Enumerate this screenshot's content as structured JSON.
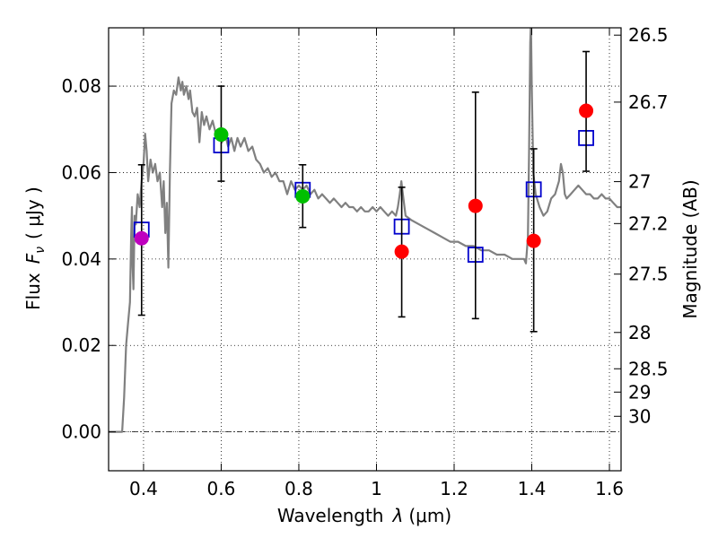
{
  "chart_data": {
    "type": "scatter",
    "xlabel": "Wavelength λ (μm)",
    "ylabel": "Flux F_ν (μJy)",
    "ylabel_parts": {
      "prefix": "Flux",
      "symbol": "F",
      "subscript": "ν",
      "unit": "( μJy )"
    },
    "xlabel_parts": {
      "prefix": "Wavelength",
      "symbol": "λ",
      "unit": "(μm)"
    },
    "right_ylabel": "Magnitude (AB)",
    "xlim": [
      0.31,
      1.63
    ],
    "ylim": [
      -0.009,
      0.0935
    ],
    "grid": true,
    "x_ticks": [
      {
        "value": 0.4,
        "label": "0.4"
      },
      {
        "value": 0.6,
        "label": "0.6"
      },
      {
        "value": 0.8,
        "label": "0.8"
      },
      {
        "value": 1.0,
        "label": "1"
      },
      {
        "value": 1.2,
        "label": "1.2"
      },
      {
        "value": 1.4,
        "label": "1.4"
      },
      {
        "value": 1.6,
        "label": "1.6"
      }
    ],
    "y_ticks": [
      {
        "value": 0.0,
        "label": "0.00"
      },
      {
        "value": 0.02,
        "label": "0.02"
      },
      {
        "value": 0.04,
        "label": "0.04"
      },
      {
        "value": 0.06,
        "label": "0.06"
      },
      {
        "value": 0.08,
        "label": "0.08"
      }
    ],
    "magnitude_ticks": [
      {
        "label": "26.5",
        "flux": 0.0918
      },
      {
        "label": "26.7",
        "flux": 0.0763
      },
      {
        "label": "27",
        "flux": 0.0579
      },
      {
        "label": "27.2",
        "flux": 0.0482
      },
      {
        "label": "27.5",
        "flux": 0.0365
      },
      {
        "label": "28",
        "flux": 0.023
      },
      {
        "label": "28.5",
        "flux": 0.0146
      },
      {
        "label": "29",
        "flux": 0.0092
      },
      {
        "label": "30",
        "flux": 0.0036
      }
    ],
    "series": [
      {
        "name": "model spectrum",
        "kind": "line",
        "color": "#808080",
        "points": [
          [
            0.31,
            0.0
          ],
          [
            0.34,
            0.0
          ],
          [
            0.345,
            0.0
          ],
          [
            0.35,
            0.008
          ],
          [
            0.355,
            0.02
          ],
          [
            0.36,
            0.025
          ],
          [
            0.365,
            0.03
          ],
          [
            0.368,
            0.045
          ],
          [
            0.37,
            0.052
          ],
          [
            0.372,
            0.038
          ],
          [
            0.374,
            0.033
          ],
          [
            0.377,
            0.05
          ],
          [
            0.38,
            0.048
          ],
          [
            0.385,
            0.055
          ],
          [
            0.39,
            0.052
          ],
          [
            0.395,
            0.058
          ],
          [
            0.4,
            0.062
          ],
          [
            0.404,
            0.069
          ],
          [
            0.408,
            0.065
          ],
          [
            0.412,
            0.058
          ],
          [
            0.418,
            0.063
          ],
          [
            0.424,
            0.06
          ],
          [
            0.43,
            0.062
          ],
          [
            0.436,
            0.058
          ],
          [
            0.442,
            0.06
          ],
          [
            0.448,
            0.052
          ],
          [
            0.452,
            0.058
          ],
          [
            0.456,
            0.046
          ],
          [
            0.46,
            0.053
          ],
          [
            0.464,
            0.038
          ],
          [
            0.468,
            0.06
          ],
          [
            0.472,
            0.076
          ],
          [
            0.478,
            0.079
          ],
          [
            0.484,
            0.078
          ],
          [
            0.49,
            0.082
          ],
          [
            0.496,
            0.079
          ],
          [
            0.5,
            0.081
          ],
          [
            0.504,
            0.078
          ],
          [
            0.51,
            0.08
          ],
          [
            0.516,
            0.077
          ],
          [
            0.52,
            0.079
          ],
          [
            0.526,
            0.074
          ],
          [
            0.532,
            0.073
          ],
          [
            0.538,
            0.075
          ],
          [
            0.544,
            0.067
          ],
          [
            0.55,
            0.074
          ],
          [
            0.556,
            0.071
          ],
          [
            0.562,
            0.073
          ],
          [
            0.57,
            0.07
          ],
          [
            0.578,
            0.072
          ],
          [
            0.586,
            0.069
          ],
          [
            0.594,
            0.07
          ],
          [
            0.602,
            0.067
          ],
          [
            0.61,
            0.069
          ],
          [
            0.618,
            0.066
          ],
          [
            0.626,
            0.068
          ],
          [
            0.634,
            0.065
          ],
          [
            0.642,
            0.068
          ],
          [
            0.65,
            0.066
          ],
          [
            0.66,
            0.068
          ],
          [
            0.67,
            0.065
          ],
          [
            0.68,
            0.066
          ],
          [
            0.69,
            0.063
          ],
          [
            0.7,
            0.062
          ],
          [
            0.71,
            0.06
          ],
          [
            0.72,
            0.061
          ],
          [
            0.73,
            0.059
          ],
          [
            0.74,
            0.06
          ],
          [
            0.75,
            0.058
          ],
          [
            0.76,
            0.058
          ],
          [
            0.77,
            0.055
          ],
          [
            0.78,
            0.058
          ],
          [
            0.79,
            0.056
          ],
          [
            0.8,
            0.057
          ],
          [
            0.81,
            0.056
          ],
          [
            0.82,
            0.057
          ],
          [
            0.83,
            0.055
          ],
          [
            0.84,
            0.056
          ],
          [
            0.85,
            0.054
          ],
          [
            0.86,
            0.055
          ],
          [
            0.87,
            0.054
          ],
          [
            0.88,
            0.053
          ],
          [
            0.89,
            0.054
          ],
          [
            0.9,
            0.053
          ],
          [
            0.91,
            0.052
          ],
          [
            0.92,
            0.053
          ],
          [
            0.93,
            0.052
          ],
          [
            0.94,
            0.052
          ],
          [
            0.95,
            0.051
          ],
          [
            0.96,
            0.052
          ],
          [
            0.97,
            0.051
          ],
          [
            0.98,
            0.051
          ],
          [
            0.99,
            0.052
          ],
          [
            1.0,
            0.051
          ],
          [
            1.01,
            0.052
          ],
          [
            1.02,
            0.051
          ],
          [
            1.03,
            0.05
          ],
          [
            1.04,
            0.051
          ],
          [
            1.05,
            0.05
          ],
          [
            1.055,
            0.052
          ],
          [
            1.06,
            0.055
          ],
          [
            1.064,
            0.058
          ],
          [
            1.068,
            0.055
          ],
          [
            1.075,
            0.05
          ],
          [
            1.09,
            0.049
          ],
          [
            1.11,
            0.048
          ],
          [
            1.13,
            0.047
          ],
          [
            1.15,
            0.046
          ],
          [
            1.17,
            0.045
          ],
          [
            1.19,
            0.044
          ],
          [
            1.21,
            0.044
          ],
          [
            1.23,
            0.043
          ],
          [
            1.25,
            0.043
          ],
          [
            1.27,
            0.042
          ],
          [
            1.29,
            0.042
          ],
          [
            1.31,
            0.041
          ],
          [
            1.33,
            0.041
          ],
          [
            1.35,
            0.04
          ],
          [
            1.37,
            0.04
          ],
          [
            1.38,
            0.04
          ],
          [
            1.385,
            0.039
          ],
          [
            1.39,
            0.045
          ],
          [
            1.393,
            0.065
          ],
          [
            1.396,
            0.09
          ],
          [
            1.398,
            0.095
          ],
          [
            1.4,
            0.08
          ],
          [
            1.404,
            0.06
          ],
          [
            1.41,
            0.055
          ],
          [
            1.42,
            0.052
          ],
          [
            1.43,
            0.05
          ],
          [
            1.44,
            0.051
          ],
          [
            1.45,
            0.054
          ],
          [
            1.46,
            0.055
          ],
          [
            1.47,
            0.058
          ],
          [
            1.475,
            0.062
          ],
          [
            1.48,
            0.06
          ],
          [
            1.485,
            0.055
          ],
          [
            1.49,
            0.054
          ],
          [
            1.5,
            0.055
          ],
          [
            1.51,
            0.056
          ],
          [
            1.52,
            0.057
          ],
          [
            1.53,
            0.056
          ],
          [
            1.54,
            0.055
          ],
          [
            1.55,
            0.055
          ],
          [
            1.56,
            0.054
          ],
          [
            1.57,
            0.054
          ],
          [
            1.58,
            0.055
          ],
          [
            1.59,
            0.054
          ],
          [
            1.6,
            0.054
          ],
          [
            1.61,
            0.053
          ],
          [
            1.62,
            0.052
          ],
          [
            1.63,
            0.052
          ]
        ]
      },
      {
        "name": "model photometry",
        "kind": "open-square",
        "color": "#0000cc",
        "points": [
          [
            0.395,
            0.0468
          ],
          [
            0.6,
            0.0663
          ],
          [
            0.81,
            0.056
          ],
          [
            1.065,
            0.0475
          ],
          [
            1.255,
            0.041
          ],
          [
            1.405,
            0.0561
          ],
          [
            1.54,
            0.068
          ]
        ]
      },
      {
        "name": "observed photometry",
        "kind": "errorbar-point",
        "points": [
          {
            "x": 0.395,
            "y": 0.0448,
            "yerr": [
              0.0178,
              0.017
            ],
            "color": "#bf00bf"
          },
          {
            "x": 0.6,
            "y": 0.0688,
            "yerr": [
              0.0108,
              0.0112
            ],
            "color": "#00bf00"
          },
          {
            "x": 0.81,
            "y": 0.0545,
            "yerr": [
              0.0072,
              0.0073
            ],
            "color": "#00bf00"
          },
          {
            "x": 1.065,
            "y": 0.0417,
            "yerr": [
              0.0151,
              0.0149
            ],
            "color": "#ff0000"
          },
          {
            "x": 1.255,
            "y": 0.0523,
            "yerr": [
              0.0261,
              0.0263
            ],
            "color": "#ff0000"
          },
          {
            "x": 1.405,
            "y": 0.0442,
            "yerr": [
              0.021,
              0.0213
            ],
            "color": "#ff0000"
          },
          {
            "x": 1.54,
            "y": 0.0743,
            "yerr": [
              0.014,
              0.0137
            ],
            "color": "#ff0000"
          }
        ]
      }
    ]
  }
}
